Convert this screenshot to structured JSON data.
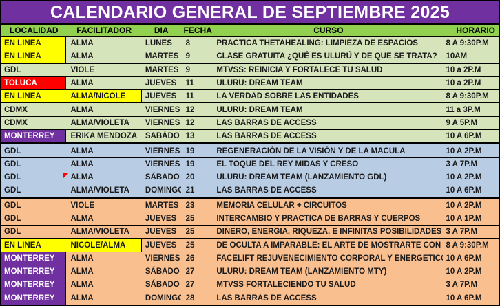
{
  "title": "CALENDARIO GENERAL DE SEPTIEMBRE 2025",
  "colors": {
    "title_bg": "#7030A0",
    "header_bg": "#92D050",
    "section_green": "#D6E4BC",
    "section_blue": "#B8CCE4",
    "section_orange": "#FABF8F",
    "highlight_yellow": "#FFFF00",
    "highlight_red": "#FF0000",
    "highlight_purple": "#7030A0"
  },
  "table": {
    "headers": [
      "LOCALIDAD",
      "FACILITADOR",
      "DIA",
      "FECHA",
      "CURSO",
      "HORARIO"
    ],
    "rows": [
      {
        "localidad": "EN LINEA",
        "loc_style": "yellow",
        "facilitador": "ALMA",
        "fac_style": "none",
        "dia": "LUNES",
        "fecha": "8",
        "curso": "PRACTICA THETAHEALING: LIMPIEZA DE ESPACIOS",
        "horario": "8 A 9:30P.M",
        "bg": "green",
        "thick_top": false,
        "note": false
      },
      {
        "localidad": "EN LINEA",
        "loc_style": "yellow",
        "facilitador": "ALMA",
        "fac_style": "none",
        "dia": "MARTES",
        "fecha": "9",
        "curso": "CLASE GRATUITA ¿QUÉ ES ULURÚ Y DE QUE SE TRATA?",
        "horario": "10AM",
        "bg": "green",
        "thick_top": false,
        "note": false
      },
      {
        "localidad": "GDL",
        "loc_style": "none",
        "facilitador": "VIOLE",
        "fac_style": "none",
        "dia": "MARTES",
        "fecha": "9",
        "curso": "MTVSS: REINICIA Y FORTALECE TU SALUD",
        "horario": "10 a 2P.M",
        "bg": "green",
        "thick_top": false,
        "note": false
      },
      {
        "localidad": "TOLUCA",
        "loc_style": "red",
        "facilitador": "ALMA",
        "fac_style": "none",
        "dia": "JUEVES",
        "fecha": "11",
        "curso": "ULURU: DREAM TEAM",
        "horario": "10 a 2P.M",
        "bg": "green",
        "thick_top": false,
        "note": false
      },
      {
        "localidad": "EN LINEA",
        "loc_style": "yellow",
        "facilitador": "ALMA/NICOLE",
        "fac_style": "yellow",
        "dia": "JUEVES",
        "fecha": "11",
        "curso": "LA VERDAD SOBRE LAS ENTIDADES",
        "horario": "8 A 9:30P.M",
        "bg": "green",
        "thick_top": false,
        "note": false
      },
      {
        "localidad": "CDMX",
        "loc_style": "none",
        "facilitador": "ALMA",
        "fac_style": "none",
        "dia": "VIERNES",
        "fecha": "12",
        "curso": "ULURU: DREAM TEAM",
        "horario": "11 a 3P.M",
        "bg": "green",
        "thick_top": false,
        "note": false
      },
      {
        "localidad": "CDMX",
        "loc_style": "none",
        "facilitador": "ALMA/VIOLETA",
        "fac_style": "none",
        "dia": "VIERNES",
        "fecha": "12",
        "curso": "LAS BARRAS DE ACCESS",
        "horario": "9 A 5P.M",
        "bg": "green",
        "thick_top": false,
        "note": false
      },
      {
        "localidad": "MONTERREY",
        "loc_style": "purple",
        "facilitador": "ERIKA MENDOZA",
        "fac_style": "none",
        "dia": "SABÁDO",
        "fecha": "13",
        "curso": "LAS BARRAS DE ACCESS",
        "horario": "10 A 6P.M",
        "bg": "green",
        "thick_top": false,
        "note": false
      },
      {
        "localidad": "GDL",
        "loc_style": "none",
        "facilitador": "ALMA",
        "fac_style": "none",
        "dia": "VIERNES",
        "fecha": "19",
        "curso": "REGENERACIÓN DE LA VISIÓN Y DE LA MACULA",
        "horario": "10 A 2P.M",
        "bg": "blue",
        "thick_top": true,
        "note": false
      },
      {
        "localidad": "GDL",
        "loc_style": "none",
        "facilitador": "ALMA",
        "fac_style": "none",
        "dia": "VIERNES",
        "fecha": "19",
        "curso": "EL TOQUE DEL REY MIDAS Y CRESO",
        "horario": "3 A 7P.M",
        "bg": "blue",
        "thick_top": false,
        "note": false
      },
      {
        "localidad": "GDL",
        "loc_style": "none",
        "facilitador": "ALMA",
        "fac_style": "none",
        "dia": "SÁBADO",
        "fecha": "20",
        "curso": "ULURU: DREAM TEAM (LANZAMIENTO GDL)",
        "horario": "10 A 2P.M",
        "bg": "blue",
        "thick_top": false,
        "note": true
      },
      {
        "localidad": "GDL",
        "loc_style": "none",
        "facilitador": "ALMA/VIOLETA",
        "fac_style": "none",
        "dia": "DOMINGO",
        "fecha": "21",
        "curso": "LAS BARRAS DE ACCESS",
        "horario": "10 A 6P.M",
        "bg": "blue",
        "thick_top": false,
        "note": false
      },
      {
        "localidad": "GDL",
        "loc_style": "none",
        "facilitador": "VIOLE",
        "fac_style": "none",
        "dia": "MARTES",
        "fecha": "23",
        "curso": "MEMORIA CELULAR + CIRCUITOS",
        "horario": "10 A 2P.M",
        "bg": "orange",
        "thick_top": true,
        "note": false
      },
      {
        "localidad": "GDL",
        "loc_style": "none",
        "facilitador": "ALMA",
        "fac_style": "none",
        "dia": "JUEVES",
        "fecha": "25",
        "curso": "INTERCAMBIO Y PRACTICA DE BARRAS Y CUERPOS",
        "horario": "10 A 1P.M",
        "bg": "orange",
        "thick_top": false,
        "note": false
      },
      {
        "localidad": "GDL",
        "loc_style": "none",
        "facilitador": "ALMA/VIOLETA",
        "fac_style": "none",
        "dia": "JUEVES",
        "fecha": "25",
        "curso": "DINERO, ENERGIA, RIQUEZA, E INFINITAS POSIBILIDADES",
        "horario": "3 A 7P.M",
        "bg": "orange",
        "thick_top": false,
        "note": false
      },
      {
        "localidad": "EN LINEA",
        "loc_style": "yellow",
        "facilitador": "NICOLE/ALMA",
        "fac_style": "yellow",
        "dia": "JUEVES",
        "fecha": "25",
        "curso": "DE OCULTA A IMPARABLE: EL ARTE DE MOSTRARTE CON F",
        "horario": "8 A 9:30P.M",
        "bg": "orange",
        "thick_top": false,
        "note": false
      },
      {
        "localidad": "MONTERREY",
        "loc_style": "purple",
        "facilitador": "ALMA",
        "fac_style": "none",
        "dia": "VIERNES",
        "fecha": "26",
        "curso": "FACELIFT REJUVENECIMIENTO CORPORAL Y ENERGETICO",
        "horario": "10 A 6P.M",
        "bg": "orange",
        "thick_top": false,
        "note": false
      },
      {
        "localidad": "MONTERREY",
        "loc_style": "purple",
        "facilitador": "ALMA",
        "fac_style": "none",
        "dia": "SÁBADO",
        "fecha": "27",
        "curso": "ULURU: DREAM TEAM (LANZAMIENTO MTY)",
        "horario": "10 A 2P.M",
        "bg": "orange",
        "thick_top": false,
        "note": false
      },
      {
        "localidad": "MONTERREY",
        "loc_style": "purple",
        "facilitador": "ALMA",
        "fac_style": "none",
        "dia": "SÁBADO",
        "fecha": "27",
        "curso": "MTVSS FORTALECIENDO TU SALUD",
        "horario": "3 A 7P.M",
        "bg": "orange",
        "thick_top": false,
        "note": false
      },
      {
        "localidad": "MONTERREY",
        "loc_style": "purple",
        "facilitador": "ALMA",
        "fac_style": "none",
        "dia": "DOMINGO",
        "fecha": "28",
        "curso": "LAS BARRAS DE ACCESS",
        "horario": "10 A 6P.M",
        "bg": "orange",
        "thick_top": false,
        "note": false
      }
    ]
  }
}
